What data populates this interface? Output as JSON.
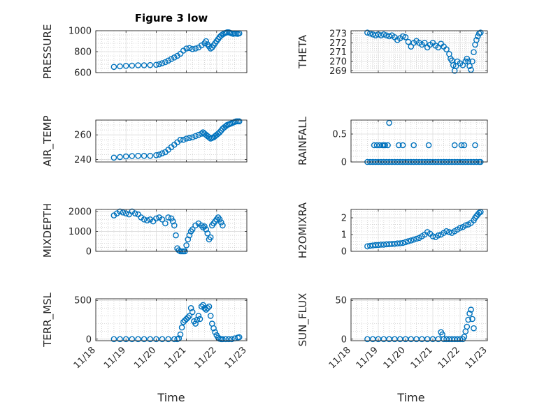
{
  "figure": {
    "title": "Figure 3 low",
    "xlabel": "Time"
  },
  "chart_data": [
    {
      "type": "scatter",
      "name": "pressure-panel",
      "ylabel": "PRESSURE",
      "xlim": [
        0,
        5
      ],
      "ylim": [
        600,
        1000
      ],
      "yticks": [
        600,
        800,
        1000
      ],
      "xticks": [
        "11/18",
        "11/19",
        "11/20",
        "11/21",
        "11/22",
        "11/23"
      ],
      "x": [
        0.6,
        0.8,
        1.0,
        1.2,
        1.4,
        1.6,
        1.8,
        2.0,
        2.1,
        2.2,
        2.3,
        2.4,
        2.5,
        2.6,
        2.7,
        2.8,
        2.9,
        3.0,
        3.1,
        3.2,
        3.3,
        3.4,
        3.5,
        3.6,
        3.65,
        3.7,
        3.75,
        3.8,
        3.85,
        3.9,
        3.95,
        4.0,
        4.05,
        4.1,
        4.15,
        4.2,
        4.25,
        4.3,
        4.35,
        4.4,
        4.45,
        4.5,
        4.55,
        4.6,
        4.65,
        4.7,
        4.75
      ],
      "y": [
        655,
        660,
        665,
        667,
        670,
        670,
        672,
        675,
        680,
        690,
        700,
        715,
        730,
        745,
        760,
        780,
        810,
        830,
        835,
        825,
        830,
        840,
        860,
        880,
        900,
        870,
        850,
        830,
        840,
        860,
        880,
        900,
        920,
        940,
        955,
        965,
        975,
        980,
        985,
        985,
        980,
        975,
        970,
        975,
        972,
        970,
        975
      ]
    },
    {
      "type": "scatter",
      "name": "theta-panel",
      "ylabel": "THETA",
      "xlim": [
        0,
        5
      ],
      "ylim": [
        268.8,
        273.3
      ],
      "yticks": [
        269,
        270,
        271,
        272,
        273
      ],
      "xticks": [
        "11/18",
        "11/19",
        "11/20",
        "11/21",
        "11/22",
        "11/23"
      ],
      "x": [
        0.6,
        0.7,
        0.8,
        0.9,
        1.0,
        1.1,
        1.2,
        1.3,
        1.4,
        1.5,
        1.6,
        1.7,
        1.8,
        1.9,
        2.0,
        2.1,
        2.2,
        2.3,
        2.4,
        2.5,
        2.6,
        2.7,
        2.8,
        2.9,
        3.0,
        3.1,
        3.2,
        3.3,
        3.4,
        3.5,
        3.6,
        3.65,
        3.7,
        3.75,
        3.8,
        3.85,
        3.9,
        4.0,
        4.1,
        4.2,
        4.25,
        4.3,
        4.35,
        4.4,
        4.45,
        4.5,
        4.55,
        4.6,
        4.65,
        4.7,
        4.75
      ],
      "y": [
        273.1,
        273.0,
        272.9,
        272.8,
        272.9,
        272.8,
        272.9,
        272.8,
        272.7,
        272.8,
        272.6,
        272.3,
        272.5,
        272.7,
        272.6,
        272.1,
        271.6,
        272.0,
        272.2,
        272.0,
        271.8,
        272.0,
        271.5,
        271.8,
        272.0,
        271.7,
        271.5,
        271.9,
        271.6,
        271.3,
        270.8,
        270.3,
        270.1,
        269.6,
        269.0,
        269.5,
        270.0,
        269.8,
        269.6,
        270.0,
        270.3,
        270.0,
        269.5,
        269.1,
        270.0,
        271.0,
        271.8,
        272.3,
        272.7,
        273.0,
        273.1
      ]
    },
    {
      "type": "scatter",
      "name": "air-temp-panel",
      "ylabel": "AIR_TEMP",
      "xlim": [
        0,
        5
      ],
      "ylim": [
        238,
        272
      ],
      "yticks": [
        240,
        260
      ],
      "xticks": [
        "11/18",
        "11/19",
        "11/20",
        "11/21",
        "11/22",
        "11/23"
      ],
      "x": [
        0.6,
        0.8,
        1.0,
        1.2,
        1.4,
        1.6,
        1.8,
        2.0,
        2.1,
        2.2,
        2.3,
        2.4,
        2.5,
        2.6,
        2.7,
        2.8,
        2.9,
        3.0,
        3.1,
        3.2,
        3.3,
        3.4,
        3.5,
        3.55,
        3.6,
        3.65,
        3.7,
        3.75,
        3.8,
        3.85,
        3.9,
        3.95,
        4.0,
        4.05,
        4.1,
        4.15,
        4.2,
        4.25,
        4.3,
        4.35,
        4.4,
        4.45,
        4.5,
        4.55,
        4.6,
        4.65,
        4.7,
        4.75
      ],
      "y": [
        241.5,
        242,
        242.5,
        242.8,
        243,
        243,
        243,
        243.5,
        244,
        245,
        246,
        248,
        250,
        252,
        254,
        256,
        256,
        257,
        257.5,
        258,
        259,
        260,
        261,
        262,
        261,
        260,
        259,
        258,
        257,
        257.5,
        258,
        259,
        260,
        261,
        262,
        263.5,
        265,
        266,
        267,
        268,
        268.5,
        269,
        269.5,
        270,
        270.5,
        271,
        271,
        271
      ]
    },
    {
      "type": "scatter",
      "name": "rainfall-panel",
      "ylabel": "RAINFALL",
      "xlim": [
        0,
        5
      ],
      "ylim": [
        0,
        0.75
      ],
      "yticks": [
        0,
        0.5
      ],
      "xticks": [
        "11/18",
        "11/19",
        "11/20",
        "11/21",
        "11/22",
        "11/23"
      ],
      "x": [
        0.6,
        0.7,
        0.8,
        0.9,
        1.0,
        1.1,
        1.2,
        1.3,
        1.4,
        1.5,
        1.6,
        1.7,
        1.8,
        1.9,
        2.0,
        2.1,
        2.2,
        2.3,
        2.4,
        2.5,
        2.6,
        2.7,
        2.8,
        2.9,
        3.0,
        3.1,
        3.2,
        3.3,
        3.4,
        3.5,
        3.6,
        3.7,
        3.8,
        3.9,
        4.0,
        4.1,
        4.2,
        4.3,
        4.4,
        4.5,
        4.6,
        4.7,
        4.75,
        0.85,
        0.95,
        1.05,
        1.15,
        1.2,
        1.25,
        1.35,
        1.4,
        1.75,
        1.9,
        2.3,
        2.85,
        3.8,
        4.05,
        4.15,
        4.55
      ],
      "y": [
        0,
        0,
        0,
        0,
        0,
        0,
        0,
        0,
        0,
        0,
        0,
        0,
        0,
        0,
        0,
        0,
        0,
        0,
        0,
        0,
        0,
        0,
        0,
        0,
        0,
        0,
        0,
        0,
        0,
        0,
        0,
        0,
        0,
        0,
        0,
        0,
        0,
        0,
        0,
        0,
        0,
        0,
        0,
        0.3,
        0.3,
        0.3,
        0.3,
        0.3,
        0.3,
        0.3,
        0.7,
        0.3,
        0.3,
        0.3,
        0.3,
        0.3,
        0.3,
        0.3,
        0.3
      ]
    },
    {
      "type": "scatter",
      "name": "mixdepth-panel",
      "ylabel": "MIXDEPTH",
      "xlim": [
        0,
        5
      ],
      "ylim": [
        0,
        2100
      ],
      "yticks": [
        0,
        1000,
        2000
      ],
      "xticks": [
        "11/18",
        "11/19",
        "11/20",
        "11/21",
        "11/22",
        "11/23"
      ],
      "x": [
        0.6,
        0.7,
        0.8,
        0.9,
        1.0,
        1.1,
        1.2,
        1.3,
        1.4,
        1.5,
        1.6,
        1.7,
        1.8,
        1.9,
        2.0,
        2.1,
        2.2,
        2.3,
        2.4,
        2.5,
        2.55,
        2.6,
        2.65,
        2.7,
        2.75,
        2.8,
        2.85,
        2.9,
        2.95,
        3.0,
        3.05,
        3.1,
        3.15,
        3.2,
        3.3,
        3.4,
        3.5,
        3.55,
        3.6,
        3.65,
        3.7,
        3.75,
        3.8,
        3.85,
        3.9,
        3.95,
        4.0,
        4.05,
        4.1,
        4.15,
        4.2
      ],
      "y": [
        1800,
        1900,
        2000,
        1950,
        1900,
        1850,
        2000,
        1900,
        1850,
        1700,
        1600,
        1550,
        1600,
        1500,
        1650,
        1700,
        1600,
        1400,
        1700,
        1650,
        1500,
        1300,
        800,
        150,
        50,
        0,
        0,
        0,
        0,
        300,
        600,
        800,
        1000,
        1100,
        1300,
        1400,
        1300,
        1200,
        1250,
        1100,
        900,
        600,
        700,
        1300,
        1400,
        1500,
        1600,
        1700,
        1600,
        1450,
        1300
      ]
    },
    {
      "type": "scatter",
      "name": "h2omixra-panel",
      "ylabel": "H2OMIXRA",
      "xlim": [
        0,
        5
      ],
      "ylim": [
        0,
        2.5
      ],
      "yticks": [
        0,
        1,
        2
      ],
      "xticks": [
        "11/18",
        "11/19",
        "11/20",
        "11/21",
        "11/22",
        "11/23"
      ],
      "x": [
        0.6,
        0.7,
        0.8,
        0.9,
        1.0,
        1.1,
        1.2,
        1.3,
        1.4,
        1.5,
        1.6,
        1.7,
        1.8,
        1.9,
        2.0,
        2.1,
        2.2,
        2.3,
        2.4,
        2.5,
        2.6,
        2.7,
        2.8,
        2.9,
        3.0,
        3.1,
        3.2,
        3.3,
        3.4,
        3.5,
        3.6,
        3.7,
        3.8,
        3.9,
        4.0,
        4.1,
        4.2,
        4.3,
        4.4,
        4.5,
        4.55,
        4.6,
        4.65,
        4.7,
        4.75
      ],
      "y": [
        0.3,
        0.33,
        0.35,
        0.37,
        0.38,
        0.4,
        0.4,
        0.42,
        0.43,
        0.44,
        0.45,
        0.47,
        0.48,
        0.5,
        0.55,
        0.6,
        0.65,
        0.7,
        0.75,
        0.8,
        0.9,
        1.0,
        1.15,
        1.05,
        0.9,
        0.85,
        0.95,
        1.0,
        1.1,
        1.2,
        1.15,
        1.1,
        1.2,
        1.3,
        1.4,
        1.45,
        1.55,
        1.6,
        1.7,
        1.85,
        2.0,
        2.1,
        2.2,
        2.3,
        2.35
      ]
    },
    {
      "type": "scatter",
      "name": "terr-msl-panel",
      "ylabel": "TERR_MSL",
      "xlim": [
        0,
        5
      ],
      "ylim": [
        -20,
        520
      ],
      "yticks": [
        0,
        500
      ],
      "xticks": [
        "11/18",
        "11/19",
        "11/20",
        "11/21",
        "11/22",
        "11/23"
      ],
      "x": [
        0.6,
        0.8,
        1.0,
        1.2,
        1.4,
        1.6,
        1.8,
        2.0,
        2.2,
        2.4,
        2.6,
        2.7,
        2.75,
        2.8,
        2.85,
        2.9,
        2.95,
        3.0,
        3.05,
        3.1,
        3.15,
        3.2,
        3.25,
        3.3,
        3.35,
        3.4,
        3.45,
        3.5,
        3.55,
        3.6,
        3.65,
        3.7,
        3.75,
        3.8,
        3.85,
        3.9,
        3.95,
        4.0,
        4.05,
        4.1,
        4.15,
        4.2,
        4.3,
        4.4,
        4.5,
        4.6,
        4.7,
        4.75
      ],
      "y": [
        0,
        0,
        0,
        0,
        0,
        0,
        0,
        0,
        0,
        0,
        0,
        0,
        10,
        60,
        150,
        220,
        240,
        260,
        280,
        300,
        400,
        350,
        230,
        200,
        250,
        300,
        260,
        420,
        440,
        400,
        380,
        400,
        420,
        300,
        200,
        140,
        90,
        50,
        20,
        5,
        0,
        0,
        0,
        0,
        0,
        10,
        20,
        25
      ]
    },
    {
      "type": "scatter",
      "name": "sun-flux-panel",
      "ylabel": "SUN_FLUX",
      "xlim": [
        0,
        5
      ],
      "ylim": [
        -2,
        52
      ],
      "yticks": [
        0,
        50
      ],
      "xticks": [
        "11/18",
        "11/19",
        "11/20",
        "11/21",
        "11/22",
        "11/23"
      ],
      "x": [
        0.6,
        0.8,
        1.0,
        1.2,
        1.4,
        1.6,
        1.8,
        2.0,
        2.2,
        2.4,
        2.6,
        2.8,
        3.0,
        3.2,
        3.3,
        3.35,
        3.4,
        3.5,
        3.6,
        3.7,
        3.8,
        3.9,
        4.0,
        4.1,
        4.15,
        4.2,
        4.25,
        4.3,
        4.35,
        4.4,
        4.45,
        4.5
      ],
      "y": [
        0,
        0,
        0,
        0,
        0,
        0,
        0,
        0,
        0,
        0,
        0,
        0,
        0,
        0,
        9,
        6,
        0,
        0,
        0,
        0,
        0,
        0,
        0,
        0,
        3,
        10,
        16,
        25,
        33,
        38,
        26,
        14
      ]
    }
  ]
}
